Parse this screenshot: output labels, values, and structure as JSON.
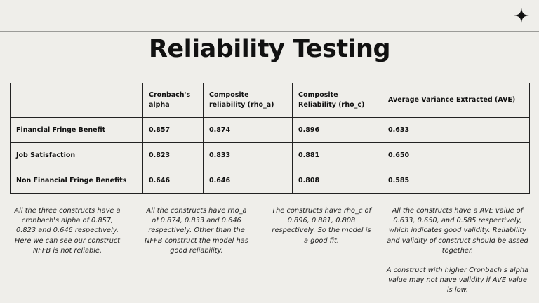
{
  "title": "Reliability Testing",
  "icon": "sparkle-icon",
  "table": {
    "headers": [
      "",
      "Cronbach's alpha",
      "Composite reliability (rho_a)",
      "Composite Reliability (rho_c)",
      "Average Variance Extracted (AVE)"
    ],
    "rows": [
      [
        "Financial Fringe Benefit",
        "0.857",
        "0.874",
        "0.896",
        "0.633"
      ],
      [
        "Job Satisfaction",
        "0.823",
        "0.833",
        "0.881",
        "0.650"
      ],
      [
        "Non Financial Fringe Benefits",
        "0.646",
        "0.646",
        "0.808",
        "0.585"
      ]
    ]
  },
  "notes": [
    [
      "All the three constructs have a cronbach's alpha of 0.857, 0.823 and 0.646 respectively. Here we can see our construct NFFB is not reliable."
    ],
    [
      "All the constructs have rho_a of 0.874, 0.833 and 0.646 respectively. Other than the NFFB construct the model has good reliability."
    ],
    [
      "The constructs have rho_c of 0.896, 0.881, 0.808 respectively. So the model is a good fit."
    ],
    [
      "All the constructs have a AVE value of 0.633, 0.650, and 0.585 respectively, which indicates good validity. Reliability and validity of construct should be assed together.",
      "A construct with higher Cronbach's alpha value may not have validity if AVE value is low."
    ]
  ]
}
